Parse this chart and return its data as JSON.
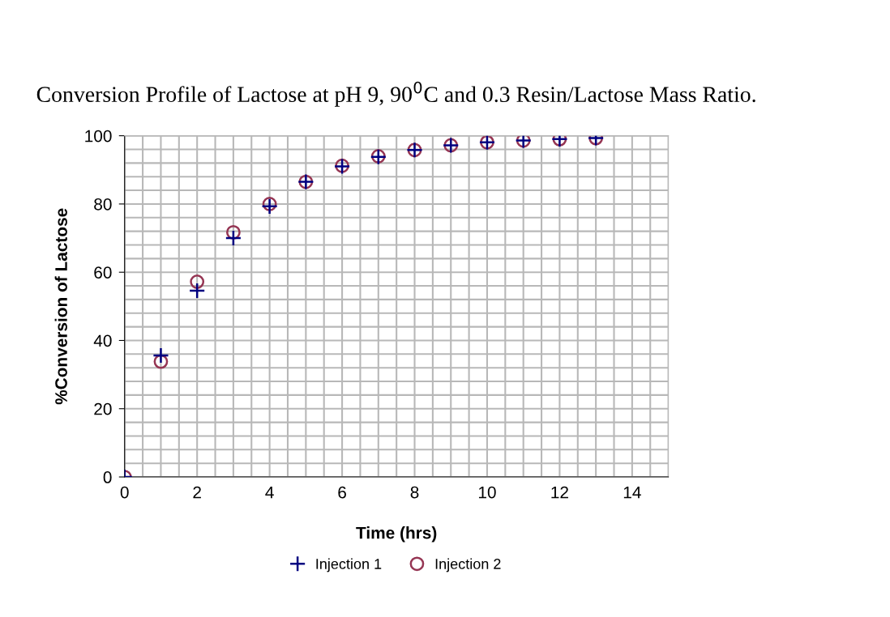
{
  "chart_data": {
    "type": "scatter",
    "title": "Conversion Profile of Lactose at pH 9, 90$^{0}$C and 0.3 Resin/Lactose Mass Ratio.",
    "xlabel": "Time (hrs)",
    "ylabel": "%Conversion of Lactose",
    "x": [
      0,
      1,
      2,
      3,
      4,
      5,
      6,
      7,
      8,
      9,
      10,
      11,
      12,
      13
    ],
    "series": [
      {
        "name": "Injection 1",
        "color": "#000080",
        "marker": "cross",
        "values": [
          0,
          35.6,
          54.6,
          70.0,
          79.3,
          86.5,
          91.0,
          93.8,
          95.8,
          97.2,
          98.1,
          98.6,
          99.0,
          99.3
        ]
      },
      {
        "name": "Injection 2",
        "color": "#953553",
        "marker": "circle",
        "values": [
          0,
          33.8,
          57.2,
          71.7,
          80.0,
          86.5,
          91.2,
          94.0,
          95.8,
          97.2,
          98.1,
          98.6,
          99.0,
          99.3
        ]
      }
    ],
    "xlim": [
      0,
      15
    ],
    "xticks": [
      0,
      2,
      4,
      6,
      8,
      10,
      12,
      14
    ],
    "ylim": [
      0,
      100
    ],
    "yticks": [
      0,
      20,
      40,
      60,
      80,
      100
    ],
    "grid": true,
    "legend": "bottom"
  }
}
